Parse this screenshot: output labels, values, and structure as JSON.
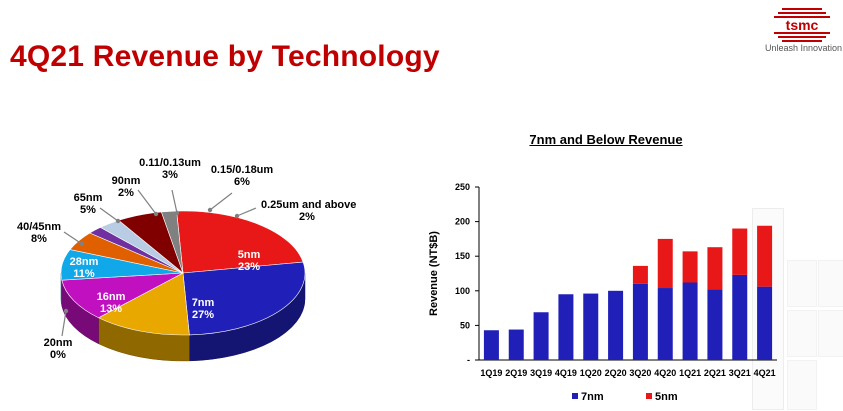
{
  "header": {
    "title": "4Q21 Revenue by Technology",
    "logo_text": "tsmc",
    "slogan": "Unleash Innovation"
  },
  "colors": {
    "title": "#c00000",
    "7nm": "#2020b8",
    "5nm": "#e81818"
  },
  "chart_data": [
    {
      "type": "pie",
      "title": "",
      "slices": [
        {
          "label": "5nm",
          "pct": "23%",
          "value": 23,
          "color": "#e81818"
        },
        {
          "label": "7nm",
          "pct": "27%",
          "value": 27,
          "color": "#2020b8"
        },
        {
          "label": "16nm",
          "pct": "13%",
          "value": 13,
          "color": "#e8a800"
        },
        {
          "label": "20nm",
          "pct": "0%",
          "value": 0,
          "color": "#909090"
        },
        {
          "label": "28nm",
          "pct": "11%",
          "value": 11,
          "color": "#c010c0"
        },
        {
          "label": "40/45nm",
          "pct": "8%",
          "value": 8,
          "color": "#10a8e8"
        },
        {
          "label": "65nm",
          "pct": "5%",
          "value": 5,
          "color": "#e06000"
        },
        {
          "label": "90nm",
          "pct": "2%",
          "value": 2,
          "color": "#7030a0"
        },
        {
          "label": "0.11/0.13um",
          "pct": "3%",
          "value": 3,
          "color": "#b8cce4"
        },
        {
          "label": "0.15/0.18um",
          "pct": "6%",
          "value": 6,
          "color": "#800000"
        },
        {
          "label": "0.25um and above",
          "pct": "2%",
          "value": 2,
          "color": "#808080"
        }
      ]
    },
    {
      "type": "bar",
      "stacked": true,
      "title": "7nm and Below Revenue",
      "xlabel": "",
      "ylabel": "Revenue (NT$B)",
      "ylim": [
        0,
        250
      ],
      "yticks": [
        0,
        50,
        100,
        150,
        200,
        250
      ],
      "ytick_labels": [
        "-",
        "50",
        "100",
        "150",
        "200",
        "250"
      ],
      "grid": false,
      "legend_position": "bottom",
      "categories": [
        "1Q19",
        "2Q19",
        "3Q19",
        "4Q19",
        "1Q20",
        "2Q20",
        "3Q20",
        "4Q20",
        "1Q21",
        "2Q21",
        "3Q21",
        "4Q21"
      ],
      "series": [
        {
          "name": "7nm",
          "color": "#2020b8",
          "values": [
            43,
            44,
            69,
            95,
            96,
            100,
            110,
            104,
            112,
            102,
            123,
            106
          ]
        },
        {
          "name": "5nm",
          "color": "#e81818",
          "values": [
            0,
            0,
            0,
            0,
            0,
            0,
            26,
            71,
            45,
            61,
            67,
            88
          ]
        }
      ]
    }
  ]
}
